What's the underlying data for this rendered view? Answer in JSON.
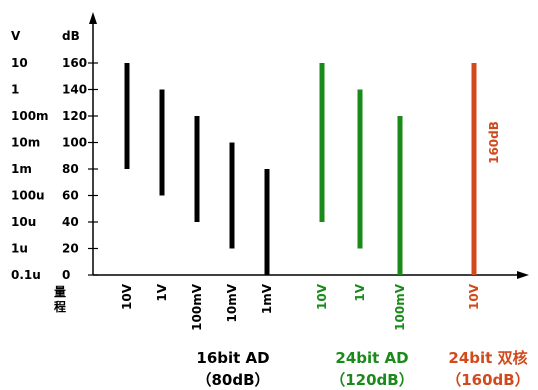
{
  "chart_data": {
    "type": "bar",
    "subtype": "floating-range",
    "y_axis": {
      "left_header": "V",
      "right_header": "dB",
      "ylim": [
        0,
        160
      ],
      "db_ticks": [
        "160",
        "140",
        "120",
        "100",
        "80",
        "60",
        "40",
        "20",
        "0"
      ],
      "volt_ticks": [
        "10",
        "1",
        "100m",
        "10m",
        "1m",
        "100u",
        "10u",
        "1u",
        "0.1u"
      ]
    },
    "x_axis_label": "量程",
    "groups": [
      {
        "name": "16bit AD",
        "range": "（80dB）",
        "color": "#000000",
        "bars": [
          {
            "label": "10V",
            "low": 80,
            "high": 160
          },
          {
            "label": "1V",
            "low": 60,
            "high": 140
          },
          {
            "label": "100mV",
            "low": 40,
            "high": 120
          },
          {
            "label": "10mV",
            "low": 20,
            "high": 100
          },
          {
            "label": "1mV",
            "low": 0,
            "high": 80
          }
        ]
      },
      {
        "name": "24bit AD",
        "range": "（120dB）",
        "color": "#1a8a1a",
        "bars": [
          {
            "label": "10V",
            "low": 40,
            "high": 160
          },
          {
            "label": "1V",
            "low": 20,
            "high": 140
          },
          {
            "label": "100mV",
            "low": 0,
            "high": 120
          }
        ]
      },
      {
        "name": "24bit 双核",
        "range": "（160dB）",
        "color": "#d2491c",
        "bar_annotation": "160dB",
        "bars": [
          {
            "label": "10V",
            "low": 0,
            "high": 160
          }
        ]
      }
    ]
  }
}
